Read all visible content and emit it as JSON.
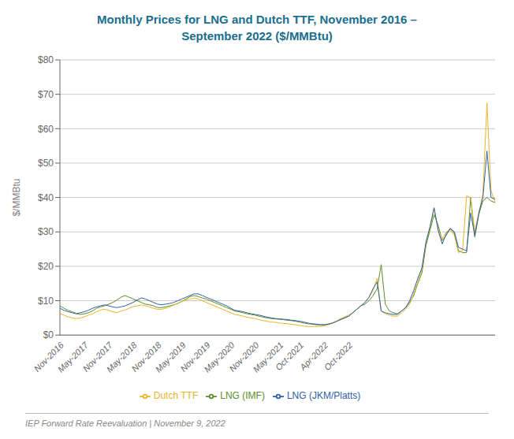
{
  "chart_data": {
    "type": "line",
    "title": "Monthly Prices for LNG and Dutch TTF, November 2016 –\nSeptember 2022 ($/MMBtu)",
    "y_label": "$/MMBtu",
    "annotations": [
      "IEP Forward Rate Reevaluation | November 9, 2022"
    ],
    "categories": [
      "Nov-2016",
      null,
      null,
      null,
      null,
      null,
      "May-2017",
      null,
      null,
      null,
      null,
      null,
      "Nov-2017",
      null,
      null,
      null,
      null,
      null,
      "May-2018",
      null,
      null,
      null,
      null,
      null,
      "Nov-2018",
      null,
      null,
      null,
      null,
      null,
      "May-2019",
      null,
      null,
      null,
      null,
      null,
      "Nov-2019",
      null,
      null,
      null,
      null,
      null,
      "May-2020",
      null,
      null,
      null,
      null,
      null,
      "Nov-2020",
      null,
      null,
      null,
      null,
      null,
      "May-2021",
      null,
      null,
      null,
      null,
      "Oct-2021",
      null,
      null,
      null,
      null,
      null,
      "Apr-2022",
      null,
      null,
      null,
      null,
      null,
      "Oct-2022",
      null,
      null,
      null,
      null,
      null,
      null,
      null,
      null,
      null,
      null,
      null,
      null,
      null,
      null,
      null,
      null,
      null,
      null,
      null,
      null,
      null,
      null,
      null,
      null,
      null,
      null,
      null,
      null,
      null,
      null,
      null,
      null,
      null,
      null,
      null,
      null
    ],
    "series": [
      {
        "name": "LNG (IMF)",
        "color": "#5b8c2a",
        "values": [
          8.5,
          7.8,
          7.2,
          6.8,
          6.3,
          6.0,
          6.2,
          6.5,
          7.0,
          7.8,
          8.2,
          8.5,
          9.0,
          9.5,
          10.2,
          11.0,
          11.5,
          11.0,
          10.5,
          10.0,
          9.5,
          9.0,
          8.8,
          8.5,
          8.0,
          8.0,
          8.2,
          8.5,
          8.8,
          9.2,
          9.8,
          10.5,
          11.2,
          11.5,
          11.2,
          10.8,
          10.5,
          10.0,
          9.5,
          9.0,
          8.5,
          8.0,
          7.5,
          7.0,
          6.8,
          6.5,
          6.2,
          6.0,
          5.8,
          5.5,
          5.2,
          5.0,
          4.8,
          4.7,
          4.6,
          4.5,
          4.3,
          4.2,
          4.0,
          3.8,
          3.5,
          3.3,
          3.2,
          3.0,
          3.0,
          3.0,
          3.2,
          3.5,
          4.0,
          4.5,
          5.0,
          5.5,
          6.5,
          7.5,
          8.5,
          9.0,
          10.0,
          11.5,
          13.5,
          20.5,
          9.0,
          7.0,
          6.5,
          6.2,
          7.0,
          8.0,
          9.5,
          11.5,
          15.0,
          18.0,
          26.0,
          30.5,
          35.0,
          32.0,
          27.5,
          29.0,
          31.0,
          29.5,
          24.5,
          24.0,
          24.0,
          40.0,
          28.5,
          35.0,
          39.0,
          40.0,
          39.0,
          38.5
        ]
      },
      {
        "name": "Dutch TTF",
        "color": "#e8b42a",
        "values": [
          6.2,
          5.8,
          5.3,
          5.0,
          4.8,
          5.0,
          5.3,
          5.8,
          6.2,
          6.8,
          7.3,
          7.5,
          7.2,
          6.8,
          6.5,
          7.0,
          7.3,
          7.8,
          8.3,
          8.5,
          8.8,
          8.5,
          8.2,
          7.8,
          7.5,
          7.5,
          7.8,
          8.2,
          8.8,
          9.3,
          9.8,
          10.2,
          10.5,
          10.8,
          10.5,
          10.0,
          9.5,
          9.0,
          8.5,
          8.0,
          7.5,
          7.0,
          6.5,
          6.0,
          5.8,
          5.5,
          5.2,
          5.0,
          4.8,
          4.5,
          4.2,
          4.0,
          3.8,
          3.7,
          3.5,
          3.4,
          3.3,
          3.1,
          3.0,
          2.8,
          2.6,
          2.5,
          2.5,
          2.5,
          2.5,
          2.7,
          3.0,
          3.5,
          4.0,
          4.8,
          5.3,
          5.8,
          6.5,
          7.5,
          8.5,
          9.5,
          11.0,
          13.0,
          16.5,
          7.0,
          6.2,
          5.8,
          5.5,
          5.5,
          6.5,
          7.5,
          9.0,
          12.0,
          15.5,
          19.0,
          27.0,
          31.5,
          37.0,
          30.5,
          28.0,
          30.0,
          30.5,
          29.0,
          24.0,
          24.5,
          40.5,
          40.0,
          30.0,
          35.5,
          41.0,
          67.5,
          42.0,
          38.5
        ]
      },
      {
        "name": "LNG (JKM/Platts)",
        "color": "#3060a0",
        "values": [
          7.8,
          7.2,
          6.8,
          6.5,
          6.2,
          6.5,
          6.8,
          7.2,
          7.8,
          8.2,
          8.5,
          8.8,
          8.5,
          8.2,
          8.0,
          8.2,
          8.5,
          9.0,
          9.5,
          10.2,
          10.8,
          10.5,
          10.0,
          9.5,
          9.0,
          8.8,
          9.0,
          9.2,
          9.5,
          10.0,
          10.5,
          11.0,
          11.5,
          12.0,
          12.0,
          11.5,
          11.0,
          10.5,
          10.0,
          9.5,
          9.0,
          8.5,
          7.8,
          7.2,
          7.0,
          6.8,
          6.5,
          6.2,
          6.0,
          5.8,
          5.5,
          5.2,
          5.0,
          4.8,
          4.7,
          4.6,
          4.5,
          4.3,
          4.2,
          4.0,
          3.8,
          3.5,
          3.3,
          3.2,
          3.0,
          3.0,
          3.2,
          3.5,
          4.0,
          4.5,
          5.0,
          5.5,
          6.5,
          7.5,
          8.5,
          9.5,
          11.0,
          13.5,
          15.5,
          7.0,
          6.5,
          6.2,
          6.0,
          6.0,
          7.0,
          8.0,
          10.0,
          13.0,
          16.5,
          19.5,
          27.0,
          31.5,
          37.0,
          30.5,
          26.5,
          29.5,
          31.0,
          30.0,
          25.5,
          25.0,
          24.5,
          35.5,
          29.0,
          35.5,
          40.0,
          53.5,
          40.0,
          39.5
        ]
      }
    ],
    "ylim": [
      0,
      80
    ],
    "yticks": [
      {
        "value": 0,
        "label": "$0"
      },
      {
        "value": 10,
        "label": "$10"
      },
      {
        "value": 20,
        "label": "$20"
      },
      {
        "value": 30,
        "label": "$30"
      },
      {
        "value": 40,
        "label": "$40"
      },
      {
        "value": 50,
        "label": "$50"
      },
      {
        "value": 60,
        "label": "$60"
      },
      {
        "value": 70,
        "label": "$70"
      },
      {
        "value": 80,
        "label": "$80"
      }
    ],
    "grid": true,
    "legend": "bottom"
  }
}
